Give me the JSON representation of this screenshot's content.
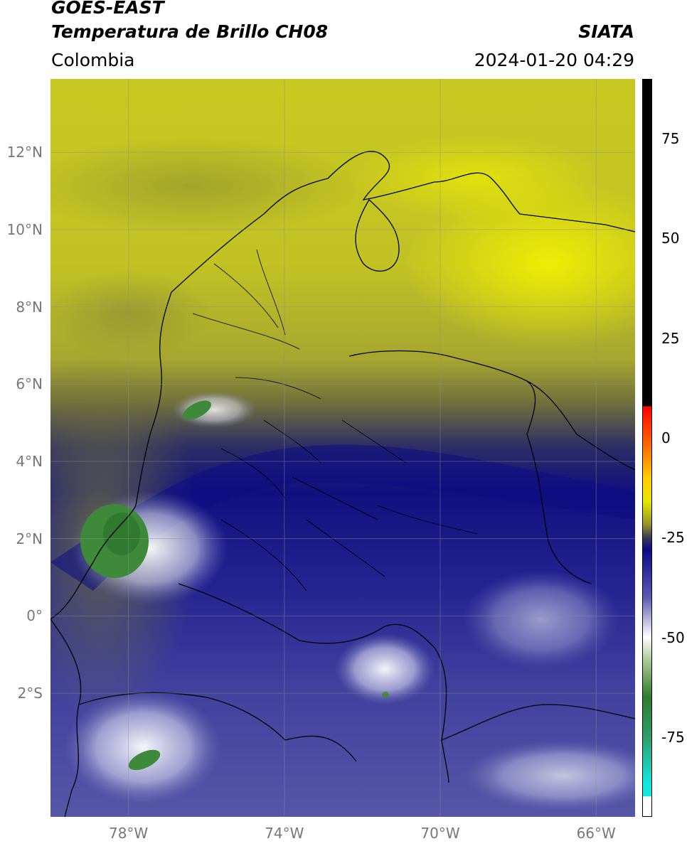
{
  "header": {
    "satellite": "GOES-EAST",
    "product": "Temperatura de Brillo CH08",
    "region": "Colombia",
    "brand": "SIATA",
    "timestamp": "2024-01-20 04:29"
  },
  "map": {
    "extent": {
      "lon_min": -80.0,
      "lon_max": -65.0,
      "lat_min": -5.2,
      "lat_max": 13.9
    },
    "lat_ticks": [
      {
        "label": "12°N",
        "value": 12
      },
      {
        "label": "10°N",
        "value": 10
      },
      {
        "label": "8°N",
        "value": 8
      },
      {
        "label": "6°N",
        "value": 6
      },
      {
        "label": "4°N",
        "value": 4
      },
      {
        "label": "2°N",
        "value": 2
      },
      {
        "label": "0°",
        "value": 0
      },
      {
        "label": "2°S",
        "value": -2
      }
    ],
    "lon_ticks": [
      {
        "label": "78°W",
        "value": -78
      },
      {
        "label": "74°W",
        "value": -74
      },
      {
        "label": "70°W",
        "value": -70
      },
      {
        "label": "66°W",
        "value": -66
      }
    ],
    "gridlines": true
  },
  "colorbar": {
    "range": [
      -95,
      90
    ],
    "ticks": [
      {
        "label": "75",
        "value": 75
      },
      {
        "label": "50",
        "value": 50
      },
      {
        "label": "25",
        "value": 25
      },
      {
        "label": "0",
        "value": 0
      },
      {
        "label": "-25",
        "value": -25
      },
      {
        "label": "-50",
        "value": -50
      },
      {
        "label": "-75",
        "value": -75
      }
    ],
    "stops": [
      {
        "value": 90,
        "color": "#000000"
      },
      {
        "value": 8,
        "color": "#000000"
      },
      {
        "value": 7.9,
        "color": "#ff0000"
      },
      {
        "value": -2,
        "color": "#ff6a00"
      },
      {
        "value": -10,
        "color": "#ffcc00"
      },
      {
        "value": -16,
        "color": "#e6e600"
      },
      {
        "value": -22,
        "color": "#8f8f2a"
      },
      {
        "value": -25,
        "color": "#3a3a55"
      },
      {
        "value": -28,
        "color": "#0b0b88"
      },
      {
        "value": -40,
        "color": "#5a5ab0"
      },
      {
        "value": -50,
        "color": "#ffffff"
      },
      {
        "value": -56,
        "color": "#a8c890"
      },
      {
        "value": -65,
        "color": "#2f7d2f"
      },
      {
        "value": -75,
        "color": "#2e9e6a"
      },
      {
        "value": -87,
        "color": "#12e8e0"
      },
      {
        "value": -90,
        "color": "#12e8e0"
      },
      {
        "value": -90.1,
        "color": "#ffffff"
      },
      {
        "value": -95,
        "color": "#ffffff"
      }
    ]
  }
}
